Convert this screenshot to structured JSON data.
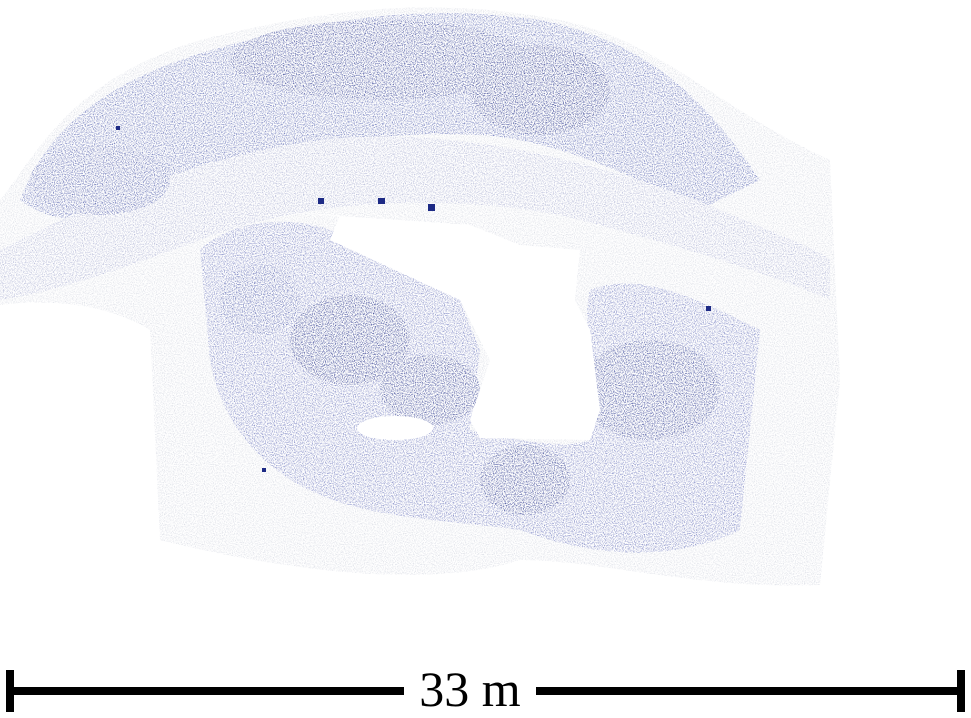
{
  "scale_bar": {
    "label": "33 m"
  },
  "colors": {
    "background": "#ffffff",
    "point_light": "#d6d9e2",
    "point_mid": "#8a92c8",
    "point_dark": "#1d2a85",
    "scale_bar": "#000000"
  }
}
